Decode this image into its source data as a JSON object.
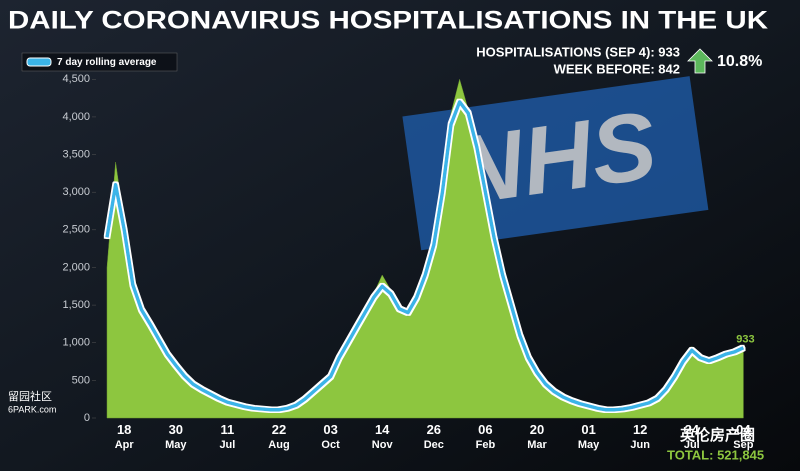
{
  "chart_data": {
    "type": "area",
    "title": "DAILY CORONAVIRUS HOSPITALISATIONS  IN THE UK",
    "annotations": {
      "latest": "HOSPITALISATIONS (SEP 4): 933",
      "week_before": "WEEK BEFORE: 842",
      "change": "10.8%",
      "total": "TOTAL: 521,845"
    },
    "background_logo": "NHS",
    "watermarks": [
      "留园社区",
      "6PARK.com",
      "英伦房产圈"
    ],
    "legend": "top-left",
    "grid": false,
    "categories": [
      null,
      null,
      "18 Apr",
      null,
      null,
      null,
      null,
      null,
      "30 May",
      null,
      null,
      null,
      null,
      null,
      "11 Jul",
      null,
      null,
      null,
      null,
      null,
      "22 Aug",
      null,
      null,
      null,
      null,
      null,
      "03 Oct",
      null,
      null,
      null,
      null,
      null,
      "14 Nov",
      null,
      null,
      null,
      null,
      null,
      "26 Dec",
      null,
      null,
      null,
      null,
      null,
      "06 Feb",
      null,
      null,
      null,
      null,
      null,
      "20 Mar",
      null,
      null,
      null,
      null,
      null,
      "01 May",
      null,
      null,
      null,
      null,
      null,
      "12 Jun",
      null,
      null,
      null,
      null,
      null,
      "24 Jul",
      null,
      null,
      null,
      null,
      null,
      "04 Sep"
    ],
    "series": [
      {
        "type": "area",
        "color": "#8dc63f",
        "values": [
          2000,
          3400,
          2600,
          1850,
          1500,
          1300,
          1100,
          900,
          750,
          580,
          470,
          400,
          330,
          270,
          220,
          190,
          160,
          140,
          120,
          115,
          115,
          135,
          180,
          260,
          360,
          470,
          580,
          850,
          1050,
          1250,
          1450,
          1650,
          1900,
          1700,
          1500,
          1350,
          1650,
          1950,
          2350,
          3100,
          4050,
          4500,
          4100,
          3650,
          3050,
          2450,
          1950,
          1550,
          1150,
          850,
          640,
          470,
          370,
          290,
          240,
          200,
          170,
          140,
          115,
          110,
          120,
          145,
          175,
          210,
          270,
          400,
          580,
          800,
          950,
          820,
          780,
          830,
          870,
          900,
          950
        ]
      },
      {
        "type": "line",
        "name": "7 day rolling average",
        "color": "#3ab4e8",
        "values": [
          2400,
          3100,
          2500,
          1770,
          1440,
          1250,
          1050,
          850,
          700,
          560,
          450,
          380,
          320,
          260,
          210,
          180,
          150,
          130,
          120,
          110,
          110,
          130,
          170,
          250,
          350,
          450,
          550,
          800,
          1000,
          1200,
          1400,
          1600,
          1750,
          1650,
          1450,
          1400,
          1600,
          1900,
          2300,
          3000,
          3900,
          4200,
          4050,
          3600,
          3000,
          2400,
          1900,
          1500,
          1100,
          800,
          600,
          450,
          350,
          280,
          230,
          190,
          160,
          130,
          110,
          110,
          120,
          140,
          170,
          200,
          260,
          380,
          550,
          750,
          900,
          800,
          760,
          800,
          850,
          880,
          933
        ]
      }
    ],
    "ylim": [
      0,
      4650
    ],
    "yticks": [
      0,
      500,
      {
        "value": 1000,
        "label": "1,000"
      },
      {
        "value": 1500,
        "label": "1,500"
      },
      {
        "value": 2000,
        "label": "2,000"
      },
      {
        "value": 2500,
        "label": "2,500"
      },
      {
        "value": 3000,
        "label": "3,000"
      },
      {
        "value": 3500,
        "label": "3,500"
      },
      {
        "value": 4000,
        "label": "4,000"
      },
      {
        "value": 4500,
        "label": "4,500"
      }
    ]
  }
}
